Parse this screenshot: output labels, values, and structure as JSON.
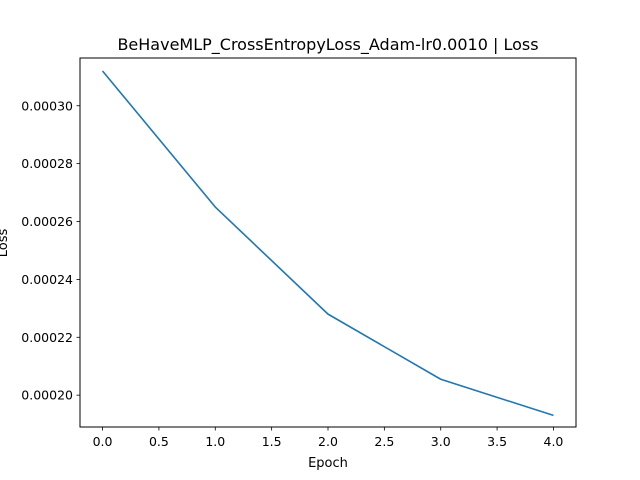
{
  "chart_data": {
    "type": "line",
    "title": "BeHaveMLP_CrossEntropyLoss_Adam-lr0.0010 | Loss",
    "xlabel": "Epoch",
    "ylabel": "Loss",
    "xlim": [
      -0.2,
      4.2
    ],
    "ylim": [
      0.000189,
      0.0003165
    ],
    "grid": false,
    "legend": "none",
    "x_ticks": [
      0.0,
      0.5,
      1.0,
      1.5,
      2.0,
      2.5,
      3.0,
      3.5,
      4.0
    ],
    "x_tick_labels": [
      "0.0",
      "0.5",
      "1.0",
      "1.5",
      "2.0",
      "2.5",
      "3.0",
      "3.5",
      "4.0"
    ],
    "y_ticks": [
      0.0002,
      0.00022,
      0.00024,
      0.00026,
      0.00028,
      0.0003
    ],
    "y_tick_labels": [
      "0.00020",
      "0.00022",
      "0.00024",
      "0.00026",
      "0.00028",
      "0.00030"
    ],
    "series": [
      {
        "color": "#1f77b4",
        "x": [
          0,
          1,
          2,
          3,
          4
        ],
        "y": [
          0.000312,
          0.000265,
          0.000228,
          0.0002055,
          0.000193
        ]
      }
    ]
  }
}
